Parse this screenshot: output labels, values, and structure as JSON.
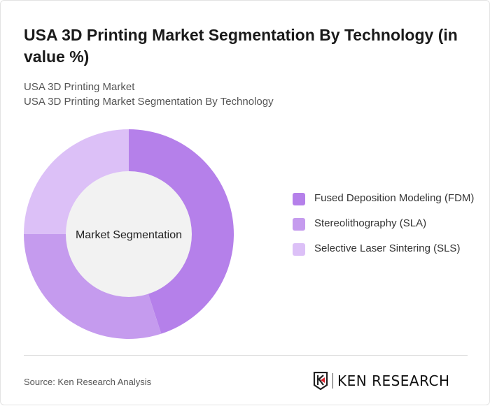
{
  "title": "USA 3D Printing Market Segmentation By Technology (in value %)",
  "subtitle1": "USA 3D Printing Market",
  "subtitle2": "USA 3D Printing Market Segmentation By Technology",
  "source": "Source: Ken Research Analysis",
  "logo_text": "KEN RESEARCH",
  "chart_data": {
    "type": "pie",
    "donut": true,
    "center_label": "Market Segmentation",
    "categories": [
      "Fused Deposition Modeling (FDM)",
      "Stereolithography (SLA)",
      "Selective Laser Sintering (SLS)"
    ],
    "values": [
      45,
      30,
      25
    ],
    "colors": [
      "#b580ea",
      "#c59bee",
      "#dcc0f7"
    ],
    "legend_position": "right"
  }
}
